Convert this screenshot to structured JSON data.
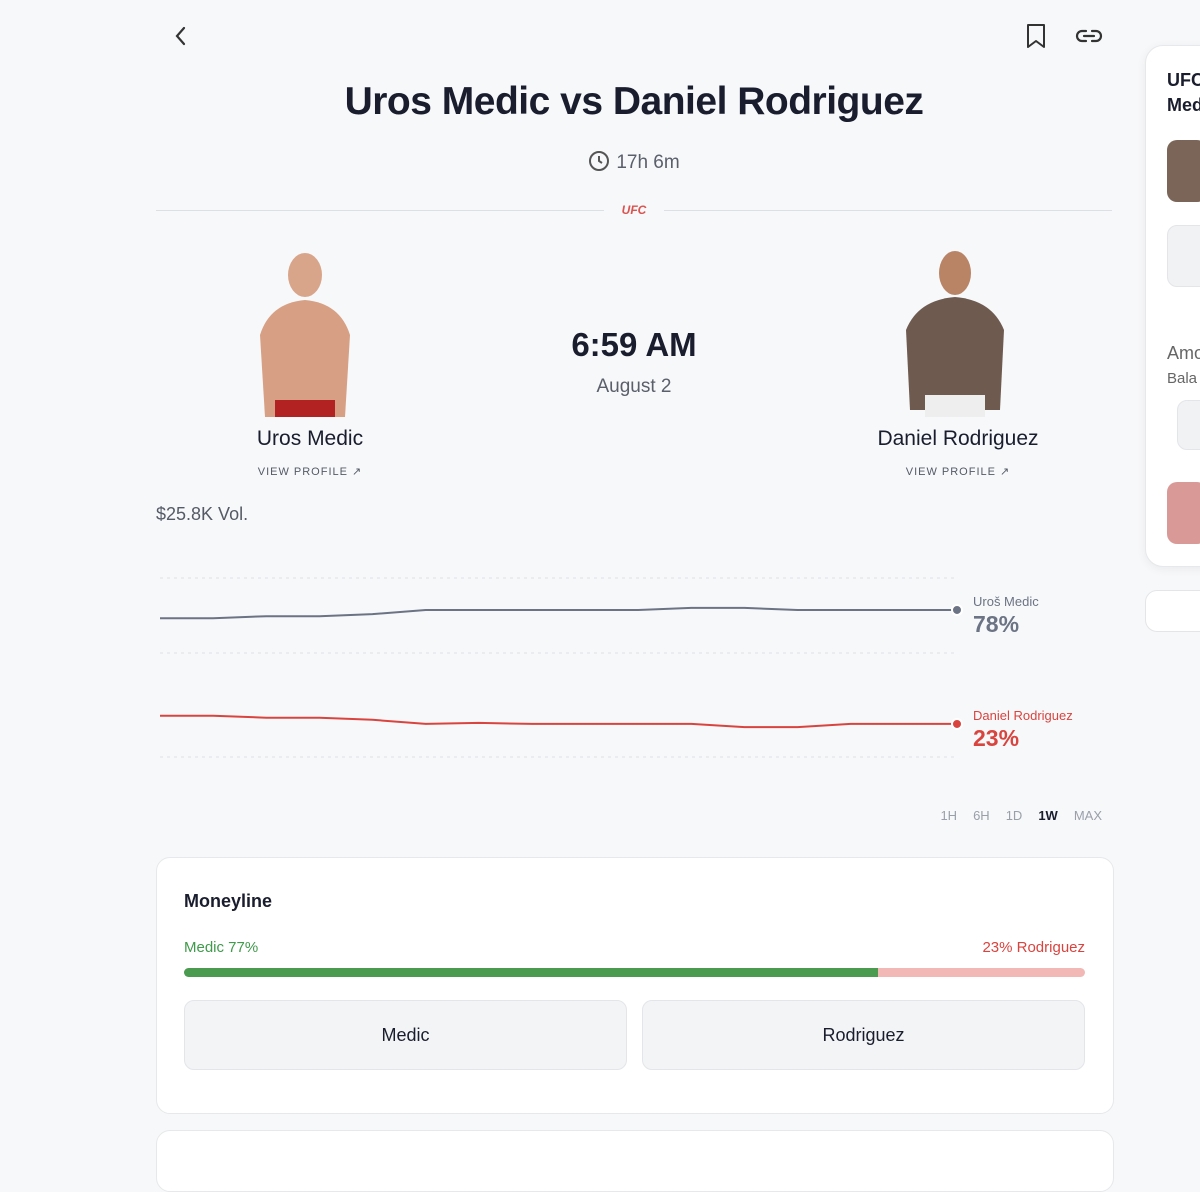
{
  "header": {
    "title": "Uros Medic vs Daniel Rodriguez",
    "countdown": "17h 6m",
    "league": "UFC"
  },
  "fighters": [
    {
      "name": "Uros Medic",
      "link": "VIEW PROFILE"
    },
    {
      "name": "Daniel Rodriguez",
      "link": "VIEW PROFILE"
    }
  ],
  "event": {
    "time": "6:59 AM",
    "date": "August 2"
  },
  "volume": "$25.8K Vol.",
  "price_chart": {
    "type": "line",
    "ylim": [
      0,
      100
    ],
    "series": [
      {
        "name": "Uroš Medic",
        "color": "#6b7384",
        "values": [
          74,
          74,
          75,
          75,
          76,
          78,
          78,
          78,
          78,
          78,
          79,
          79,
          78,
          78,
          78,
          78
        ],
        "value_label": "78%",
        "last": 78
      },
      {
        "name": "Daniel Rodriguez",
        "color": "#d9443f",
        "values": [
          27,
          27,
          26,
          26,
          25,
          23,
          23.5,
          23,
          23,
          23,
          23,
          21.5,
          21.5,
          23,
          23,
          23
        ],
        "value_label": "23%",
        "last": 23
      }
    ]
  },
  "ranges": [
    "1H",
    "6H",
    "1D",
    "1W",
    "MAX"
  ],
  "active_range": 3,
  "moneyline": {
    "title": "Moneyline",
    "left": {
      "label": "Medic 77%",
      "percent": 77
    },
    "right": {
      "label": "23% Rodriguez",
      "percent": 23
    },
    "buttons": [
      "Medic",
      "Rodriguez"
    ]
  },
  "side_panel": {
    "lines": [
      "UFC",
      "Med",
      "Amo",
      "Bala"
    ]
  }
}
